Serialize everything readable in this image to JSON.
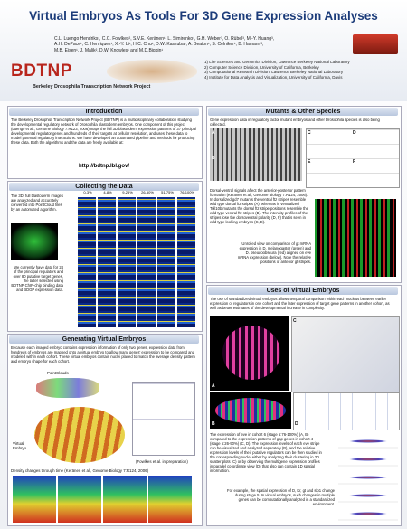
{
  "header": {
    "title": "Virtual Embryos As Tools For 3D Gene Expression Analyses",
    "authors": [
      "C.L. Luengo Hendriks¹, C.C. Fowlkes², S.V.E. Keränen¹, L. Simirenko¹, G.H. Weber³, O. Rübel³, M.-Y. Huang³,",
      "A.H. DePace¹, C. Henriquez¹, X.-Y. Li¹, H.C. Chu¹, D.W. Kaszuba¹, A. Beaton¹, S. Celniker¹, B. Hamann³,",
      "M.B. Eisen¹, J. Malik², D.W. Knowles¹ and M.D.Biggin¹"
    ],
    "logo": "BDTNP",
    "project_name": "Berkeley Drosophila Transcription Network Project",
    "affiliations": [
      "1) Life Sciences and Genomics Division, Lawrence Berkeley National Laboratory",
      "2) Computer Science Division, University of California, Berkeley",
      "3) Computational Research Division, Lawrence Berkeley National Laboratory",
      "4) Institute for Data Analysis and Visualization, University of California, Davis"
    ]
  },
  "introduction": {
    "heading": "Introduction",
    "text": "The Berkeley Drosophila Transcription Network Project (BDTNP) is a multidisciplinary collaboration studying the developmental regulatory network of Drosophila blastoderm embryos. One component of this project (Luengo et al., Genome Biology 7:R123, 2006) maps the full 3D blastoderm expression patterns of 37 principal developmental regulator genes and hundreds of their targets at cellular resolution, and uses these data to model potential regulatory interactions. We have developed an automated pipeline and methods for producing these data. Both the algorithms and the data are freely available at:",
    "url": "http://bdtnp.lbl.gov/"
  },
  "collecting": {
    "heading": "Collecting the Data",
    "text1": "The 3D, full blastoderm images are analyzed and accurately converted into PointCloud files by an automated algorithm.",
    "text2": "We currently have data for 24 of the principal regulators and over 80 putative target genes, the latter selected using BDTNP ChIP-chip binding data and BDGP expression data.",
    "stage_labels": [
      "0-3%",
      "4-8%",
      "9-25%",
      "26-50%",
      "51-75%",
      "76-100%"
    ]
  },
  "generating": {
    "heading": "Generating Virtual Embryos",
    "text": "Because each imaged embryo contains expression information of only two genes, expression data from hundreds of embryos are mapped onto a virtual embryo to allow many genes' expression to be compared and modeled within each cohort. These virtual embryos contain nuclei placed to match the average density pattern and embryo shape for each cohort.",
    "label_pointclouds": "PointClouds",
    "label_virtual_embryo": "Virtual Embryo",
    "citation": "(Fowlkes et al. in preparation)",
    "caption": "Density changes through time (Keränen et al., Genome Biology 7:R124, 2006)"
  },
  "mutants": {
    "heading": "Mutants & Other Species",
    "text1": "Gene expression data in regulatory factor mutant embryos and other Drosophila species is also being collected.",
    "text2": "Dorsal-ventral signals affect the anterior-posterior pattern formation (Keränen et al., Genome Biology 7:R124, 2006). In dorsalized gd7 mutants the ventral ftz stripes resemble wild type dorsal ftz stripes (A), whereas in ventralized Toll10b mutants the dorsal ftz stripe positions resemble the wild type ventral ftz stripes (B). The intensity profiles of the stripes lose the dorsoventral polarity (D, F) that is seen in wild type looking embryos (C, E).",
    "text3": "Unrolled view on comparison of gt mRNA expression in D. melanogaster (green) and D. pseudoobscura (red) aligned on eve mRNA expression (below). Note the relative positions of anterior gt stripes.",
    "panel_labels": [
      "A",
      "B",
      "C",
      "D",
      "E",
      "F"
    ]
  },
  "uses": {
    "heading": "Uses of Virtual Embryos",
    "text1": "The use of standardized virtual embryos allows temporal comparison within each nucleus between earlier expression of regulators in one cohort and the later expression of target gene patterns in another cohort, as well as better estimates of the developmental increase in complexity.",
    "text2": "The expression of eve in cohort 6 (stage 5:76-100%) (A, B) compared to the expression patterns of gap genes in cohort 4 (stage 5:26-50%) (C, D). The expression levels of each eve stripe can be visualized and analyzed separately (B), and the relative expression levels of their putative regulators can be then studied in the corresponding nuclei either by analyzing their clustering in 3D scatter plots (C) or by observing the multigene expression profiles in parallel co-ordinate view (D) that also can contain 1D spatial information.",
    "text3": "For example, the spatial expression of D, Kr, gt and slp1 change during stage 5. In virtual embryos, such changes in multiple genes can be computationally analyzed in a standardized environment.",
    "panel_labels": [
      "A",
      "B",
      "C",
      "D"
    ]
  }
}
